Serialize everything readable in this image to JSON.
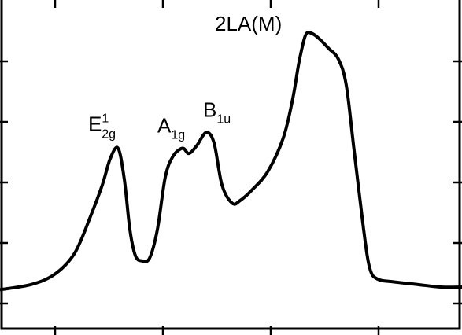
{
  "chart_data": {
    "type": "line",
    "title": "",
    "xlabel": "",
    "ylabel": "",
    "xlim": [
      0,
      587
    ],
    "ylim": [
      0,
      1
    ],
    "grid": false,
    "x_tick_count": 5,
    "y_tick_count": 5,
    "colors": {
      "line": "#000000",
      "frame": "#000000",
      "background": "#ffffff"
    },
    "series": [
      {
        "x": [
          0,
          40,
          70,
          95,
          115,
          130,
          140,
          150,
          158,
          165,
          172,
          180,
          190,
          200,
          210,
          220,
          232,
          240,
          250,
          262,
          272,
          282,
          295,
          305,
          320,
          340,
          360,
          372,
          380,
          388,
          395,
          405,
          418,
          430,
          440,
          450,
          462,
          470,
          480,
          500,
          530,
          560,
          587
        ],
        "y": [
          0.02,
          0.04,
          0.08,
          0.16,
          0.3,
          0.42,
          0.52,
          0.56,
          0.44,
          0.25,
          0.15,
          0.13,
          0.14,
          0.25,
          0.45,
          0.53,
          0.56,
          0.54,
          0.57,
          0.62,
          0.58,
          0.42,
          0.35,
          0.36,
          0.4,
          0.47,
          0.6,
          0.75,
          0.89,
          0.99,
          1.0,
          0.98,
          0.94,
          0.9,
          0.8,
          0.55,
          0.25,
          0.1,
          0.06,
          0.05,
          0.04,
          0.03,
          0.03
        ]
      }
    ],
    "annotations": [
      {
        "id": "e2g",
        "base": "E",
        "sup": "1",
        "sub": "2g",
        "x": 148,
        "y": 0.56
      },
      {
        "id": "a1g",
        "base": "A",
        "sup": "",
        "sub": "1g",
        "x": 232,
        "y": 0.56
      },
      {
        "id": "b1u",
        "base": "B",
        "sup": "",
        "sub": "1u",
        "x": 262,
        "y": 0.62
      },
      {
        "id": "2la",
        "base": "2LA(M)",
        "sup": "",
        "sub": "",
        "x": 395,
        "y": 1.0
      }
    ]
  }
}
